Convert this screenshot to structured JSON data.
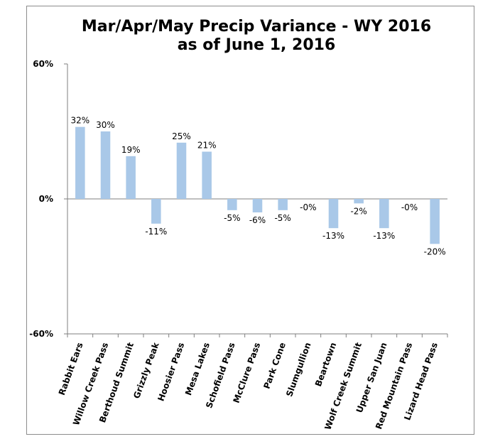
{
  "chart_data": {
    "type": "bar",
    "title_lines": [
      "Mar/Apr/May Precip Variance - WY 2016",
      "as of June 1, 2016"
    ],
    "categories": [
      "Rabbit Ears",
      "Willow Creek Pass",
      "Berthoud Summit",
      "Grizzly Peak",
      "Hoosier Pass",
      "Mesa Lakes",
      "Schofield Pass",
      "McClure Pass",
      "Park Cone",
      "Slumgullion",
      "Beartown",
      "Wolf Creek Summit",
      "Upper San Juan",
      "Red Mountain Pass",
      "Lizard Head Pass"
    ],
    "values": [
      32,
      30,
      19,
      -11,
      25,
      21,
      -5,
      -6,
      -5,
      0,
      -13,
      -2,
      -13,
      0,
      -20
    ],
    "data_labels": [
      "32%",
      "30%",
      "19%",
      "-11%",
      "25%",
      "21%",
      "-5%",
      "-6%",
      "-5%",
      "-0%",
      "-13%",
      "-2%",
      "-13%",
      "-0%",
      "-20%"
    ],
    "ylim": [
      -60,
      60
    ],
    "yticks": [
      60,
      0,
      -60
    ],
    "ytick_labels": [
      "60%",
      "0%",
      "-60%"
    ],
    "bar_color": "#a9c8e8",
    "grid": false,
    "legend": "none"
  }
}
